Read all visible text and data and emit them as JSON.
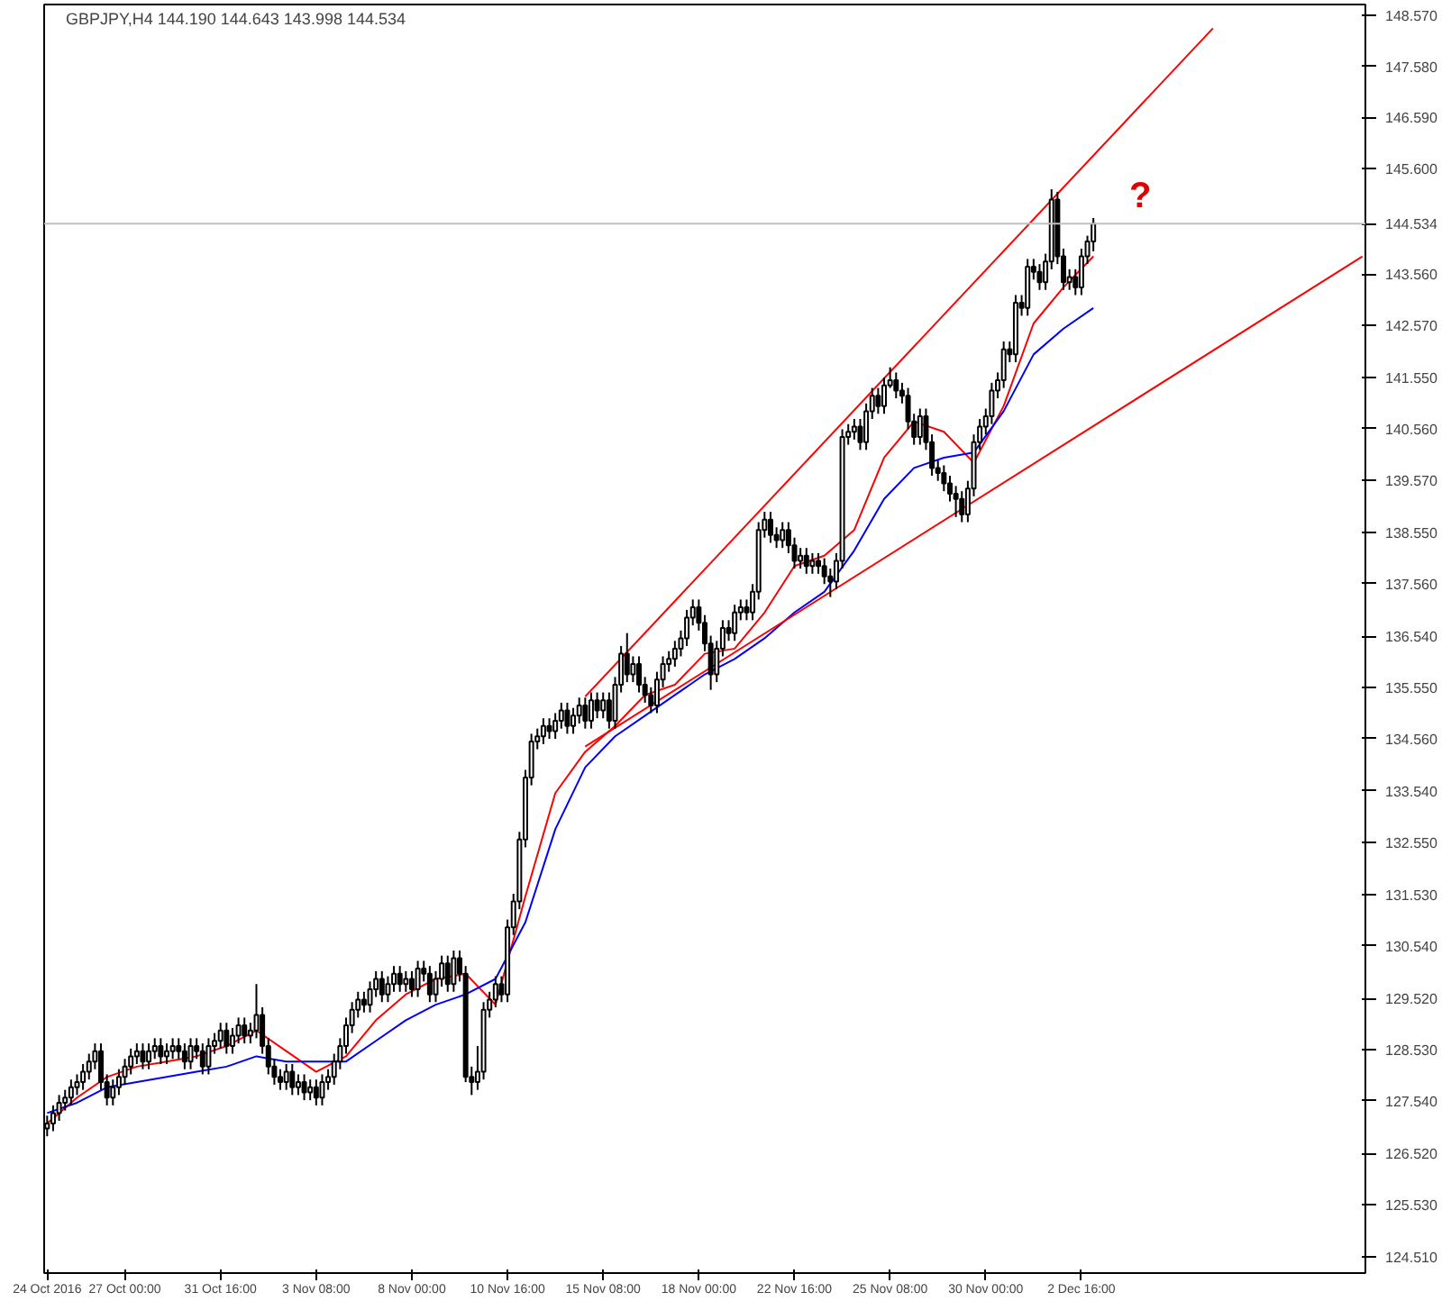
{
  "chart_data": {
    "type": "candlestick",
    "title": "GBPJPY,H4  144.190 144.643 143.998 144.534",
    "annotations": [
      "?"
    ],
    "grid": false,
    "ylim": [
      124.2,
      148.78
    ],
    "yticks": [
      {
        "value": 148.57,
        "label": "148.570"
      },
      {
        "value": 147.58,
        "label": "147.580"
      },
      {
        "value": 146.59,
        "label": "146.590"
      },
      {
        "value": 145.6,
        "label": "145.600"
      },
      {
        "value": 143.56,
        "label": "143.560"
      },
      {
        "value": 142.57,
        "label": "142.570"
      },
      {
        "value": 141.55,
        "label": "141.550"
      },
      {
        "value": 140.56,
        "label": "140.560"
      },
      {
        "value": 139.57,
        "label": "139.570"
      },
      {
        "value": 138.55,
        "label": "138.550"
      },
      {
        "value": 137.56,
        "label": "137.560"
      },
      {
        "value": 136.54,
        "label": "136.540"
      },
      {
        "value": 135.55,
        "label": "135.550"
      },
      {
        "value": 134.56,
        "label": "134.560"
      },
      {
        "value": 133.54,
        "label": "133.540"
      },
      {
        "value": 132.55,
        "label": "132.550"
      },
      {
        "value": 131.53,
        "label": "131.530"
      },
      {
        "value": 130.54,
        "label": "130.540"
      },
      {
        "value": 129.52,
        "label": "129.520"
      },
      {
        "value": 128.53,
        "label": "128.530"
      },
      {
        "value": 127.54,
        "label": "127.540"
      },
      {
        "value": 126.52,
        "label": "126.520"
      },
      {
        "value": 125.53,
        "label": "125.530"
      },
      {
        "value": 124.51,
        "label": "124.510"
      }
    ],
    "ref_lines": [
      {
        "axis": "y",
        "value": 144.534,
        "label": "144.534",
        "color": "#c0c0c0"
      }
    ],
    "categories": [
      "24 Oct 2016",
      null,
      null,
      null,
      null,
      null,
      null,
      null,
      null,
      null,
      null,
      null,
      null,
      "27 Oct 00:00",
      null,
      null,
      null,
      null,
      null,
      null,
      null,
      null,
      null,
      null,
      null,
      null,
      null,
      null,
      null,
      "31 Oct 16:00",
      null,
      null,
      null,
      null,
      null,
      null,
      null,
      null,
      null,
      null,
      null,
      null,
      null,
      null,
      null,
      "3 Nov 08:00",
      null,
      null,
      null,
      null,
      null,
      null,
      null,
      null,
      null,
      null,
      null,
      null,
      null,
      null,
      null,
      "8 Nov 00:00",
      null,
      null,
      null,
      null,
      null,
      null,
      null,
      null,
      null,
      null,
      null,
      null,
      null,
      null,
      null,
      "10 Nov 16:00",
      null,
      null,
      null,
      null,
      null,
      null,
      null,
      null,
      null,
      null,
      null,
      null,
      null,
      null,
      null,
      "15 Nov 08:00",
      null,
      null,
      null,
      null,
      null,
      null,
      null,
      null,
      null,
      null,
      null,
      null,
      null,
      null,
      null,
      "18 Nov 00:00",
      null,
      null,
      null,
      null,
      null,
      null,
      null,
      null,
      null,
      null,
      null,
      null,
      null,
      null,
      null,
      "22 Nov 16:00",
      null,
      null,
      null,
      null,
      null,
      null,
      null,
      null,
      null,
      null,
      null,
      null,
      null,
      null,
      null,
      "25 Nov 08:00",
      null,
      null,
      null,
      null,
      null,
      null,
      null,
      null,
      null,
      null,
      null,
      null,
      null,
      null,
      null,
      "30 Nov 00:00",
      null,
      null,
      null,
      null,
      null,
      null,
      null,
      null,
      null,
      null,
      null,
      null,
      null,
      null,
      null,
      "2 Dec 16:00",
      null,
      null,
      null,
      null,
      null,
      null,
      null,
      null,
      null,
      null,
      null,
      null,
      null,
      null,
      null,
      null,
      null,
      null,
      null,
      null,
      null,
      null,
      null,
      null,
      null,
      null,
      null,
      null,
      null,
      null,
      null,
      null,
      null,
      null,
      null,
      null,
      null,
      null,
      null,
      null,
      null,
      null,
      null,
      null,
      null,
      null,
      null
    ],
    "ohlc": [
      [
        127.0,
        127.25,
        126.85,
        127.1
      ],
      [
        127.1,
        127.45,
        126.95,
        127.3
      ],
      [
        127.3,
        127.65,
        127.15,
        127.5
      ],
      [
        127.5,
        127.75,
        127.35,
        127.6
      ],
      [
        127.6,
        127.95,
        127.45,
        127.8
      ],
      [
        127.8,
        128.05,
        127.65,
        127.9
      ],
      [
        127.9,
        128.25,
        127.75,
        128.1
      ],
      [
        128.1,
        128.45,
        127.95,
        128.3
      ],
      [
        128.3,
        128.65,
        128.15,
        128.5
      ],
      [
        128.5,
        128.65,
        127.75,
        127.9
      ],
      [
        127.9,
        128.05,
        127.45,
        127.6
      ],
      [
        127.6,
        127.95,
        127.45,
        127.8
      ],
      [
        127.8,
        128.15,
        127.65,
        128.0
      ],
      [
        128.0,
        128.35,
        127.85,
        128.2
      ],
      [
        128.2,
        128.55,
        128.05,
        128.4
      ],
      [
        128.4,
        128.65,
        128.25,
        128.5
      ],
      [
        128.5,
        128.65,
        128.15,
        128.3
      ],
      [
        128.3,
        128.65,
        128.15,
        128.5
      ],
      [
        128.5,
        128.75,
        128.35,
        128.6
      ],
      [
        128.6,
        128.75,
        128.25,
        128.4
      ],
      [
        128.4,
        128.65,
        128.25,
        128.5
      ],
      [
        128.5,
        128.75,
        128.35,
        128.6
      ],
      [
        128.6,
        128.75,
        128.35,
        128.5
      ],
      [
        128.5,
        128.65,
        128.15,
        128.3
      ],
      [
        128.3,
        128.75,
        128.15,
        128.6
      ],
      [
        128.6,
        128.75,
        128.35,
        128.5
      ],
      [
        128.5,
        128.65,
        128.05,
        128.2
      ],
      [
        128.2,
        128.75,
        128.05,
        128.6
      ],
      [
        128.6,
        128.85,
        128.45,
        128.7
      ],
      [
        128.7,
        129.05,
        128.55,
        128.9
      ],
      [
        128.9,
        129.05,
        128.45,
        128.6
      ],
      [
        128.6,
        128.95,
        128.45,
        128.8
      ],
      [
        128.8,
        129.15,
        128.65,
        129.0
      ],
      [
        129.0,
        129.15,
        128.65,
        128.8
      ],
      [
        128.8,
        129.05,
        128.65,
        128.9
      ],
      [
        128.9,
        129.8,
        128.75,
        129.2
      ],
      [
        129.2,
        129.35,
        128.45,
        128.6
      ],
      [
        128.6,
        128.75,
        128.05,
        128.2
      ],
      [
        128.2,
        128.35,
        127.85,
        128.0
      ],
      [
        128.0,
        128.15,
        127.75,
        127.9
      ],
      [
        127.9,
        128.25,
        127.75,
        128.1
      ],
      [
        128.1,
        128.25,
        127.65,
        127.8
      ],
      [
        127.8,
        128.05,
        127.65,
        127.9
      ],
      [
        127.9,
        128.05,
        127.55,
        127.7
      ],
      [
        127.7,
        127.95,
        127.55,
        127.8
      ],
      [
        127.8,
        127.95,
        127.45,
        127.6
      ],
      [
        127.6,
        128.05,
        127.45,
        127.9
      ],
      [
        127.9,
        128.15,
        127.75,
        128.0
      ],
      [
        128.0,
        128.45,
        127.85,
        128.3
      ],
      [
        128.3,
        128.75,
        128.15,
        128.6
      ],
      [
        128.6,
        129.15,
        128.45,
        129.0
      ],
      [
        129.0,
        129.45,
        128.85,
        129.3
      ],
      [
        129.3,
        129.65,
        129.15,
        129.5
      ],
      [
        129.5,
        129.65,
        129.25,
        129.4
      ],
      [
        129.4,
        129.85,
        129.25,
        129.7
      ],
      [
        129.7,
        130.05,
        129.55,
        129.9
      ],
      [
        129.9,
        130.05,
        129.45,
        129.6
      ],
      [
        129.6,
        129.95,
        129.45,
        129.8
      ],
      [
        129.8,
        130.15,
        129.65,
        130.0
      ],
      [
        130.0,
        130.15,
        129.65,
        129.8
      ],
      [
        129.8,
        130.05,
        129.65,
        129.9
      ],
      [
        129.9,
        130.05,
        129.55,
        129.7
      ],
      [
        129.7,
        130.25,
        129.55,
        130.1
      ],
      [
        130.1,
        130.25,
        129.85,
        130.0
      ],
      [
        130.0,
        130.15,
        129.45,
        129.6
      ],
      [
        129.6,
        130.05,
        129.45,
        129.9
      ],
      [
        129.9,
        130.35,
        129.75,
        130.2
      ],
      [
        130.2,
        130.35,
        129.65,
        129.8
      ],
      [
        129.8,
        130.45,
        129.65,
        130.3
      ],
      [
        130.3,
        130.45,
        129.85,
        130.0
      ],
      [
        130.0,
        130.15,
        127.9,
        128.0
      ],
      [
        128.0,
        128.2,
        127.65,
        127.9
      ],
      [
        127.9,
        128.6,
        127.75,
        128.1
      ],
      [
        128.1,
        129.45,
        127.95,
        129.3
      ],
      [
        129.3,
        129.65,
        129.15,
        129.5
      ],
      [
        129.5,
        129.95,
        129.35,
        129.8
      ],
      [
        129.8,
        129.95,
        129.45,
        129.6
      ],
      [
        129.6,
        131.05,
        129.45,
        130.9
      ],
      [
        130.9,
        131.55,
        130.75,
        131.4
      ],
      [
        131.4,
        132.75,
        131.25,
        132.6
      ],
      [
        132.6,
        133.95,
        132.45,
        133.8
      ],
      [
        133.8,
        134.65,
        133.65,
        134.5
      ],
      [
        134.5,
        134.75,
        134.35,
        134.6
      ],
      [
        134.6,
        134.95,
        134.45,
        134.8
      ],
      [
        134.8,
        134.95,
        134.55,
        134.7
      ],
      [
        134.7,
        135.05,
        134.55,
        134.9
      ],
      [
        134.9,
        135.25,
        134.75,
        135.1
      ],
      [
        135.1,
        135.25,
        134.65,
        134.8
      ],
      [
        134.8,
        135.15,
        134.65,
        135.0
      ],
      [
        135.0,
        135.35,
        134.85,
        135.2
      ],
      [
        135.2,
        135.35,
        134.75,
        134.9
      ],
      [
        134.9,
        135.45,
        134.75,
        135.3
      ],
      [
        135.3,
        135.45,
        134.95,
        135.1
      ],
      [
        135.1,
        135.45,
        134.95,
        135.3
      ],
      [
        135.3,
        135.45,
        134.75,
        134.9
      ],
      [
        134.9,
        135.75,
        134.75,
        135.6
      ],
      [
        135.6,
        136.35,
        135.45,
        136.2
      ],
      [
        136.2,
        136.6,
        135.65,
        135.8
      ],
      [
        135.8,
        136.15,
        135.65,
        136.0
      ],
      [
        136.0,
        136.15,
        135.45,
        135.6
      ],
      [
        135.6,
        135.75,
        135.25,
        135.4
      ],
      [
        135.4,
        135.55,
        135.05,
        135.2
      ],
      [
        135.2,
        135.85,
        135.05,
        135.7
      ],
      [
        135.7,
        136.15,
        135.55,
        136.0
      ],
      [
        136.0,
        136.25,
        135.85,
        136.1
      ],
      [
        136.1,
        136.45,
        135.95,
        136.3
      ],
      [
        136.3,
        136.65,
        136.15,
        136.5
      ],
      [
        136.5,
        137.05,
        136.35,
        136.9
      ],
      [
        136.9,
        137.25,
        136.75,
        137.1
      ],
      [
        137.1,
        137.25,
        136.65,
        136.8
      ],
      [
        136.8,
        136.95,
        136.25,
        136.4
      ],
      [
        136.4,
        136.55,
        135.5,
        135.8
      ],
      [
        135.8,
        136.45,
        135.65,
        136.3
      ],
      [
        136.3,
        136.85,
        136.15,
        136.7
      ],
      [
        136.7,
        136.85,
        136.45,
        136.6
      ],
      [
        136.6,
        137.15,
        136.45,
        137.0
      ],
      [
        137.0,
        137.25,
        136.85,
        137.1
      ],
      [
        137.1,
        137.25,
        136.85,
        137.0
      ],
      [
        137.0,
        137.55,
        136.85,
        137.4
      ],
      [
        137.4,
        138.75,
        137.25,
        138.6
      ],
      [
        138.6,
        138.95,
        138.45,
        138.8
      ],
      [
        138.8,
        138.95,
        138.35,
        138.5
      ],
      [
        138.5,
        138.65,
        138.25,
        138.4
      ],
      [
        138.4,
        138.75,
        138.25,
        138.6
      ],
      [
        138.6,
        138.75,
        138.15,
        138.3
      ],
      [
        138.3,
        138.45,
        137.85,
        138.0
      ],
      [
        138.0,
        138.25,
        137.85,
        138.1
      ],
      [
        138.1,
        138.25,
        137.75,
        137.9
      ],
      [
        137.9,
        138.15,
        137.75,
        138.0
      ],
      [
        138.0,
        138.15,
        137.75,
        137.9
      ],
      [
        137.9,
        138.05,
        137.55,
        137.7
      ],
      [
        137.7,
        137.85,
        137.3,
        137.6
      ],
      [
        137.6,
        138.15,
        137.45,
        138.0
      ],
      [
        138.0,
        140.55,
        137.85,
        140.4
      ],
      [
        140.4,
        140.65,
        140.25,
        140.5
      ],
      [
        140.5,
        140.75,
        140.35,
        140.6
      ],
      [
        140.6,
        140.75,
        140.15,
        140.3
      ],
      [
        140.3,
        141.05,
        140.15,
        140.9
      ],
      [
        140.9,
        141.35,
        140.75,
        141.2
      ],
      [
        141.2,
        141.35,
        140.85,
        141.0
      ],
      [
        141.0,
        141.55,
        140.85,
        141.4
      ],
      [
        141.4,
        141.75,
        141.35,
        141.5
      ],
      [
        141.5,
        141.65,
        141.15,
        141.3
      ],
      [
        141.3,
        141.45,
        141.05,
        141.2
      ],
      [
        141.2,
        141.35,
        140.55,
        140.7
      ],
      [
        140.7,
        140.85,
        140.25,
        140.4
      ],
      [
        140.4,
        140.95,
        140.25,
        140.8
      ],
      [
        140.8,
        140.95,
        140.15,
        140.3
      ],
      [
        140.3,
        140.45,
        139.65,
        139.8
      ],
      [
        139.8,
        139.95,
        139.55,
        139.7
      ],
      [
        139.7,
        139.85,
        139.35,
        139.5
      ],
      [
        139.5,
        139.65,
        139.15,
        139.3
      ],
      [
        139.3,
        139.45,
        138.85,
        139.2
      ],
      [
        139.2,
        139.35,
        138.75,
        138.9
      ],
      [
        138.9,
        139.55,
        138.75,
        139.4
      ],
      [
        139.4,
        140.45,
        139.25,
        140.3
      ],
      [
        140.3,
        140.75,
        140.15,
        140.6
      ],
      [
        140.6,
        140.95,
        140.45,
        140.8
      ],
      [
        140.8,
        141.45,
        140.65,
        141.3
      ],
      [
        141.3,
        141.65,
        141.15,
        141.5
      ],
      [
        141.5,
        142.25,
        141.35,
        142.1
      ],
      [
        142.1,
        142.25,
        141.85,
        142.0
      ],
      [
        142.0,
        143.15,
        141.85,
        143.0
      ],
      [
        143.0,
        143.15,
        142.75,
        142.9
      ],
      [
        142.9,
        143.85,
        142.75,
        143.7
      ],
      [
        143.7,
        143.85,
        143.45,
        143.6
      ],
      [
        143.6,
        143.75,
        143.25,
        143.4
      ],
      [
        143.4,
        143.95,
        143.25,
        143.8
      ],
      [
        143.8,
        145.2,
        143.65,
        145.0
      ],
      [
        145.0,
        145.15,
        143.75,
        143.9
      ],
      [
        143.9,
        144.05,
        143.25,
        143.4
      ],
      [
        143.4,
        143.65,
        143.25,
        143.5
      ],
      [
        143.5,
        143.65,
        143.15,
        143.3
      ],
      [
        143.3,
        144.05,
        143.15,
        143.9
      ],
      [
        143.9,
        144.3,
        143.75,
        144.19
      ],
      [
        144.19,
        144.643,
        143.998,
        144.534
      ],
      null,
      null,
      null,
      null,
      null,
      null,
      null,
      null,
      null,
      null,
      null,
      null,
      null,
      null,
      null,
      null,
      null,
      null,
      null,
      null,
      null,
      null,
      null,
      null,
      null,
      null,
      null,
      null,
      null,
      null,
      null,
      null,
      null,
      null,
      null,
      null,
      null,
      null,
      null,
      null,
      null,
      null,
      null,
      null,
      null
    ],
    "series": [
      {
        "type": "line",
        "color": "#ff0000",
        "values": [
          127.1,
          null,
          null,
          null,
          null,
          127.6,
          null,
          null,
          null,
          null,
          128.0,
          null,
          null,
          null,
          null,
          128.2,
          null,
          null,
          null,
          null,
          128.3,
          null,
          null,
          null,
          null,
          128.4,
          null,
          null,
          null,
          null,
          128.6,
          null,
          null,
          null,
          null,
          128.9,
          null,
          null,
          null,
          null,
          128.5,
          null,
          null,
          null,
          null,
          128.1,
          null,
          null,
          null,
          null,
          128.4,
          null,
          null,
          null,
          null,
          129.1,
          null,
          null,
          null,
          null,
          129.6,
          null,
          null,
          null,
          null,
          129.9,
          null,
          null,
          null,
          null,
          130.0,
          null,
          null,
          null,
          null,
          129.4,
          null,
          null,
          null,
          null,
          131.5,
          null,
          null,
          null,
          null,
          133.5,
          null,
          null,
          null,
          null,
          134.3,
          null,
          null,
          null,
          null,
          134.8,
          null,
          null,
          null,
          null,
          135.4,
          null,
          null,
          null,
          null,
          135.6,
          null,
          null,
          null,
          null,
          136.2,
          null,
          null,
          null,
          null,
          136.3,
          null,
          null,
          null,
          null,
          137.0,
          null,
          null,
          null,
          null,
          137.9,
          null,
          null,
          null,
          null,
          138.1,
          null,
          null,
          null,
          null,
          138.6,
          null,
          null,
          null,
          null,
          140.0,
          null,
          null,
          null,
          null,
          140.7,
          null,
          null,
          null,
          null,
          140.5,
          null,
          null,
          null,
          null,
          139.9,
          null,
          null,
          null,
          null,
          141.0,
          null,
          null,
          null,
          null,
          142.6,
          null,
          null,
          null,
          null,
          143.3,
          null,
          null,
          null,
          null,
          143.9,
          null,
          null,
          null,
          null,
          null,
          null,
          null,
          null,
          null,
          null,
          null,
          null,
          null,
          null,
          null,
          null,
          null,
          null,
          null,
          null,
          null,
          null,
          null,
          null,
          null,
          null,
          null,
          null,
          null,
          null,
          null,
          null,
          null,
          null,
          null,
          null,
          null,
          null,
          null,
          null,
          null,
          null,
          null,
          null,
          null
        ]
      },
      {
        "type": "line",
        "color": "#0000ff",
        "values": [
          127.3,
          null,
          null,
          null,
          null,
          127.5,
          null,
          null,
          null,
          null,
          127.8,
          null,
          null,
          null,
          null,
          127.9,
          null,
          null,
          null,
          null,
          128.0,
          null,
          null,
          null,
          null,
          128.1,
          null,
          null,
          null,
          null,
          128.2,
          null,
          null,
          null,
          null,
          128.4,
          null,
          null,
          null,
          null,
          128.3,
          null,
          null,
          null,
          null,
          128.3,
          null,
          null,
          null,
          null,
          128.3,
          null,
          null,
          null,
          null,
          128.7,
          null,
          null,
          null,
          null,
          129.1,
          null,
          null,
          null,
          null,
          129.4,
          null,
          null,
          null,
          null,
          129.6,
          null,
          null,
          null,
          null,
          129.9,
          null,
          null,
          null,
          null,
          131.0,
          null,
          null,
          null,
          null,
          132.8,
          null,
          null,
          null,
          null,
          134.0,
          null,
          null,
          null,
          null,
          134.6,
          null,
          null,
          null,
          null,
          135.0,
          null,
          null,
          null,
          null,
          135.4,
          null,
          null,
          null,
          null,
          135.8,
          null,
          null,
          null,
          null,
          136.1,
          null,
          null,
          null,
          null,
          136.5,
          null,
          null,
          null,
          null,
          137.0,
          null,
          null,
          null,
          null,
          137.4,
          null,
          null,
          null,
          null,
          138.2,
          null,
          null,
          null,
          null,
          139.2,
          null,
          null,
          null,
          null,
          139.8,
          null,
          null,
          null,
          null,
          140.0,
          null,
          null,
          null,
          null,
          140.1,
          null,
          null,
          null,
          null,
          140.9,
          null,
          null,
          null,
          null,
          142.0,
          null,
          null,
          null,
          null,
          142.5,
          null,
          null,
          null,
          null,
          142.9,
          null,
          null,
          null,
          null,
          null,
          null,
          null,
          null,
          null,
          null,
          null,
          null,
          null,
          null,
          null,
          null,
          null,
          null,
          null,
          null,
          null,
          null,
          null,
          null,
          null,
          null,
          null,
          null,
          null,
          null,
          null,
          null,
          null,
          null,
          null,
          null,
          null,
          null,
          null,
          null,
          null,
          null,
          null,
          null,
          null
        ]
      },
      {
        "type": "line",
        "color": "#ff0000",
        "values": [
          null,
          null,
          null,
          null,
          null,
          null,
          null,
          null,
          null,
          null,
          null,
          null,
          null,
          null,
          null,
          null,
          null,
          null,
          null,
          null,
          null,
          null,
          null,
          null,
          null,
          null,
          null,
          null,
          null,
          null,
          null,
          null,
          null,
          null,
          null,
          null,
          null,
          null,
          null,
          null,
          null,
          null,
          null,
          null,
          null,
          null,
          null,
          null,
          null,
          null,
          null,
          null,
          null,
          null,
          null,
          null,
          null,
          null,
          null,
          null,
          null,
          null,
          null,
          null,
          null,
          null,
          null,
          null,
          null,
          null,
          null,
          null,
          null,
          null,
          null,
          null,
          null,
          null,
          null,
          null,
          null,
          null,
          null,
          null,
          null,
          null,
          null,
          null,
          null,
          null,
          135.37,
          null,
          null,
          null,
          null,
          null,
          null,
          null,
          null,
          null,
          null,
          null,
          null,
          null,
          null,
          null,
          null,
          null,
          null,
          null,
          null,
          null,
          null,
          null,
          null,
          null,
          null,
          null,
          null,
          null,
          null,
          null,
          null,
          null,
          null,
          null,
          null,
          null,
          null,
          null,
          null,
          null,
          null,
          null,
          null,
          null,
          null,
          null,
          null,
          null,
          null,
          null,
          null,
          null,
          null,
          null,
          null,
          null,
          null,
          null,
          null,
          null,
          null,
          null,
          null,
          null,
          null,
          null,
          null,
          null,
          null,
          null,
          null,
          null,
          null,
          null,
          null,
          null,
          null,
          null,
          null,
          null,
          null,
          null,
          null,
          null,
          null,
          null,
          null,
          null,
          null,
          null,
          null,
          null,
          null,
          null,
          null,
          null,
          null,
          null,
          null,
          null,
          null,
          null,
          null,
          148.32,
          null,
          null,
          null,
          null,
          null,
          null,
          null,
          null,
          null,
          null,
          null,
          null,
          null,
          null,
          null,
          null,
          null,
          null,
          null,
          null,
          null,
          null,
          null,
          null,
          null
        ]
      },
      {
        "type": "line",
        "color": "#ff0000",
        "values": [
          null,
          null,
          null,
          null,
          null,
          null,
          null,
          null,
          null,
          null,
          null,
          null,
          null,
          null,
          null,
          null,
          null,
          null,
          null,
          null,
          null,
          null,
          null,
          null,
          null,
          null,
          null,
          null,
          null,
          null,
          null,
          null,
          null,
          null,
          null,
          null,
          null,
          null,
          null,
          null,
          null,
          null,
          null,
          null,
          null,
          null,
          null,
          null,
          null,
          null,
          null,
          null,
          null,
          null,
          null,
          null,
          null,
          null,
          null,
          null,
          null,
          null,
          null,
          null,
          null,
          null,
          null,
          null,
          null,
          null,
          null,
          null,
          null,
          null,
          null,
          null,
          null,
          null,
          null,
          null,
          null,
          null,
          null,
          null,
          null,
          null,
          null,
          null,
          null,
          null,
          134.4,
          null,
          null,
          null,
          null,
          null,
          null,
          null,
          null,
          null,
          null,
          null,
          null,
          null,
          null,
          null,
          null,
          null,
          null,
          null,
          null,
          null,
          null,
          null,
          null,
          null,
          null,
          null,
          null,
          null,
          null,
          null,
          null,
          null,
          null,
          null,
          null,
          null,
          null,
          null,
          null,
          null,
          null,
          null,
          null,
          null,
          null,
          null,
          null,
          null,
          null,
          null,
          null,
          null,
          null,
          null,
          null,
          null,
          null,
          null,
          null,
          null,
          null,
          null,
          null,
          null,
          null,
          null,
          null,
          null,
          null,
          null,
          null,
          null,
          null,
          null,
          null,
          null,
          null,
          null,
          null,
          null,
          null,
          null,
          null,
          null,
          null,
          null,
          null,
          null,
          null,
          null,
          null,
          null,
          null,
          null,
          null,
          null,
          null,
          null,
          null,
          null,
          null,
          null,
          null,
          null,
          null,
          null,
          null,
          null,
          null,
          null,
          null,
          null,
          null,
          null,
          null,
          null,
          null,
          null,
          null,
          null,
          null,
          null,
          null,
          null,
          null,
          null,
          null,
          null,
          143.9
        ]
      }
    ]
  }
}
